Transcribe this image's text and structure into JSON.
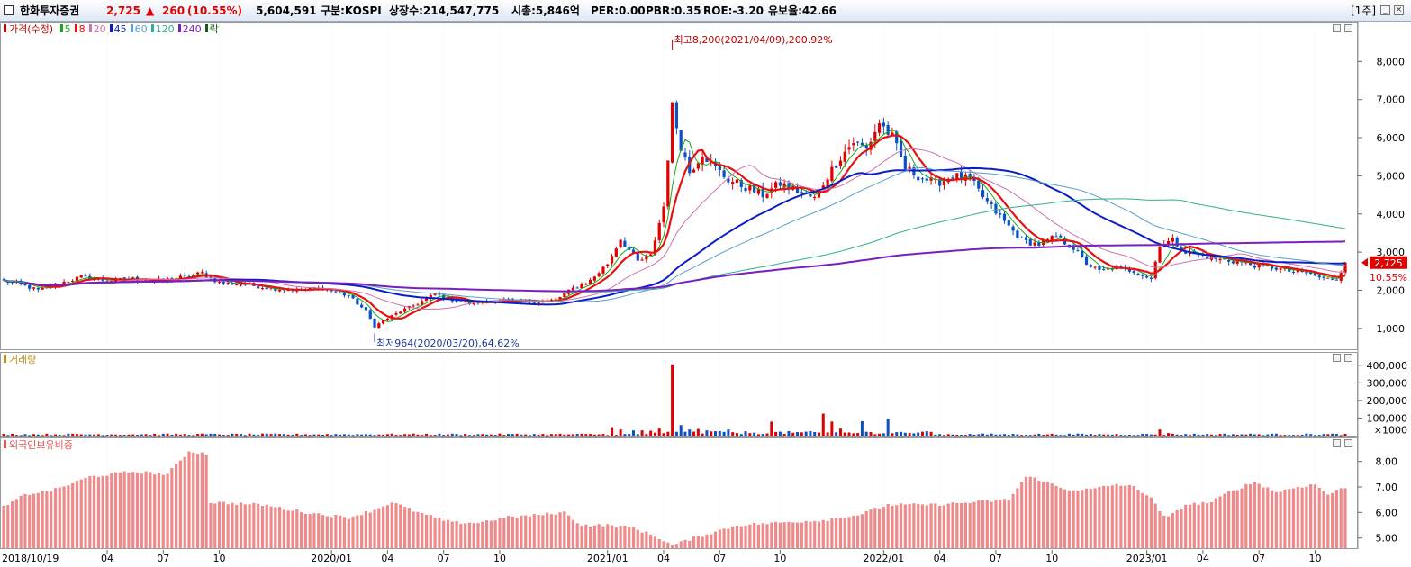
{
  "header": {
    "stock_name": "한화투자증권",
    "price": "2,725",
    "change_arrow": "▲",
    "change": "260",
    "change_pct": "(10.55%)",
    "volume": "5,604,591",
    "market": "구분:KOSPI",
    "shares": "상장수:214,547,775",
    "market_cap": "시총:5,846억",
    "per": "PER:0.00",
    "pbr": "PBR:0.35",
    "roe": "ROE:-3.20",
    "holding": "유보율:42.66",
    "period": "[1주]",
    "colors": {
      "up": "#e00000",
      "down": "#0a50c8",
      "text": "#000000"
    }
  },
  "chart_data": [
    {
      "type": "candlestick",
      "legend": {
        "price": "가격(수정)",
        "ma": [
          {
            "label": "5",
            "color": "#18a818"
          },
          {
            "label": "8",
            "color": "#e81010"
          },
          {
            "label": "20",
            "color": "#d070b0"
          },
          {
            "label": "45",
            "color": "#0a1ec8"
          },
          {
            "label": "60",
            "color": "#5aa0c8"
          },
          {
            "label": "120",
            "color": "#30b090"
          },
          {
            "label": "240",
            "color": "#7a1ec0"
          },
          {
            "label": "락",
            "color": "#106010"
          }
        ]
      },
      "y_ticks": [
        "8,000",
        "7,000",
        "6,000",
        "5,000",
        "4,000",
        "3,000",
        "2,000",
        "1,000"
      ],
      "ylim": [
        500,
        9000
      ],
      "annotations": {
        "high": "최고8,200(2021/04/09),200.92%",
        "low": "최저964(2020/03/20),64.62%"
      },
      "current_price": "2,725",
      "current_pct": "10.55%",
      "x_ticks": [
        "2018/10/19",
        "04",
        "07",
        "10",
        "2020/01",
        "04",
        "07",
        "10",
        "2021/01",
        "04",
        "07",
        "10",
        "2022/01",
        "04",
        "07",
        "10",
        "2023/01",
        "04",
        "07",
        "10"
      ],
      "anchors": [
        {
          "w": 0,
          "p": 2250
        },
        {
          "w": 4,
          "p": 2150
        },
        {
          "w": 8,
          "p": 2000
        },
        {
          "w": 12,
          "p": 2150
        },
        {
          "w": 18,
          "p": 2350
        },
        {
          "w": 24,
          "p": 2250
        },
        {
          "w": 30,
          "p": 2300
        },
        {
          "w": 36,
          "p": 2250
        },
        {
          "w": 42,
          "p": 2350
        },
        {
          "w": 46,
          "p": 2450
        },
        {
          "w": 50,
          "p": 2200
        },
        {
          "w": 56,
          "p": 2150
        },
        {
          "w": 62,
          "p": 2050
        },
        {
          "w": 68,
          "p": 2000
        },
        {
          "w": 74,
          "p": 2050
        },
        {
          "w": 80,
          "p": 1850
        },
        {
          "w": 84,
          "p": 1450
        },
        {
          "w": 86,
          "p": 1050
        },
        {
          "w": 88,
          "p": 1200
        },
        {
          "w": 92,
          "p": 1450
        },
        {
          "w": 96,
          "p": 1650
        },
        {
          "w": 100,
          "p": 1900
        },
        {
          "w": 104,
          "p": 1750
        },
        {
          "w": 108,
          "p": 1650
        },
        {
          "w": 112,
          "p": 1700
        },
        {
          "w": 116,
          "p": 1750
        },
        {
          "w": 120,
          "p": 1700
        },
        {
          "w": 124,
          "p": 1700
        },
        {
          "w": 128,
          "p": 1750
        },
        {
          "w": 132,
          "p": 2050
        },
        {
          "w": 136,
          "p": 2250
        },
        {
          "w": 140,
          "p": 2700
        },
        {
          "w": 143,
          "p": 3350
        },
        {
          "w": 145,
          "p": 3050
        },
        {
          "w": 147,
          "p": 2750
        },
        {
          "w": 150,
          "p": 2900
        },
        {
          "w": 153,
          "p": 4200
        },
        {
          "w": 155,
          "p": 6800
        },
        {
          "w": 157,
          "p": 5800
        },
        {
          "w": 159,
          "p": 5100
        },
        {
          "w": 162,
          "p": 5600
        },
        {
          "w": 165,
          "p": 5200
        },
        {
          "w": 168,
          "p": 4900
        },
        {
          "w": 172,
          "p": 4700
        },
        {
          "w": 176,
          "p": 4500
        },
        {
          "w": 180,
          "p": 4800
        },
        {
          "w": 184,
          "p": 4600
        },
        {
          "w": 188,
          "p": 4400
        },
        {
          "w": 191,
          "p": 5000
        },
        {
          "w": 194,
          "p": 5500
        },
        {
          "w": 197,
          "p": 5900
        },
        {
          "w": 200,
          "p": 5700
        },
        {
          "w": 203,
          "p": 6400
        },
        {
          "w": 206,
          "p": 6000
        },
        {
          "w": 209,
          "p": 5200
        },
        {
          "w": 212,
          "p": 5000
        },
        {
          "w": 216,
          "p": 4800
        },
        {
          "w": 220,
          "p": 5000
        },
        {
          "w": 224,
          "p": 4900
        },
        {
          "w": 228,
          "p": 4300
        },
        {
          "w": 232,
          "p": 3800
        },
        {
          "w": 236,
          "p": 3300
        },
        {
          "w": 240,
          "p": 3200
        },
        {
          "w": 244,
          "p": 3400
        },
        {
          "w": 248,
          "p": 3100
        },
        {
          "w": 251,
          "p": 2700
        },
        {
          "w": 254,
          "p": 2500
        },
        {
          "w": 258,
          "p": 2600
        },
        {
          "w": 262,
          "p": 2500
        },
        {
          "w": 266,
          "p": 2300
        },
        {
          "w": 268,
          "p": 3200
        },
        {
          "w": 271,
          "p": 3300
        },
        {
          "w": 274,
          "p": 3000
        },
        {
          "w": 278,
          "p": 2900
        },
        {
          "w": 282,
          "p": 2800
        },
        {
          "w": 286,
          "p": 2750
        },
        {
          "w": 290,
          "p": 2650
        },
        {
          "w": 294,
          "p": 2600
        },
        {
          "w": 298,
          "p": 2500
        },
        {
          "w": 302,
          "p": 2450
        },
        {
          "w": 306,
          "p": 2300
        },
        {
          "w": 309,
          "p": 2300
        },
        {
          "w": 311,
          "p": 2725
        }
      ]
    },
    {
      "type": "bar",
      "title": "거래량",
      "y_ticks": [
        "400,000",
        "300,000",
        "200,000",
        "100,000"
      ],
      "unit": "×1000",
      "ylim": [
        0,
        450000
      ],
      "spikes": [
        {
          "w": 141,
          "v": 48000
        },
        {
          "w": 143,
          "v": 35000
        },
        {
          "w": 146,
          "v": 30000
        },
        {
          "w": 148,
          "v": 30000
        },
        {
          "w": 150,
          "v": 28000
        },
        {
          "w": 152,
          "v": 40000
        },
        {
          "w": 155,
          "v": 405000
        },
        {
          "w": 157,
          "v": 60000
        },
        {
          "w": 159,
          "v": 35000
        },
        {
          "w": 161,
          "v": 38000
        },
        {
          "w": 163,
          "v": 30000
        },
        {
          "w": 165,
          "v": 25000
        },
        {
          "w": 168,
          "v": 35000
        },
        {
          "w": 178,
          "v": 80000
        },
        {
          "w": 190,
          "v": 125000
        },
        {
          "w": 192,
          "v": 80000
        },
        {
          "w": 194,
          "v": 40000
        },
        {
          "w": 199,
          "v": 82000
        },
        {
          "w": 205,
          "v": 95000
        },
        {
          "w": 207,
          "v": 20000
        },
        {
          "w": 268,
          "v": 35000
        },
        {
          "w": 270,
          "v": 15000
        }
      ]
    },
    {
      "type": "bar",
      "title": "외국인보유비중",
      "y_ticks": [
        "8.00",
        "7.00",
        "6.00",
        "5.00"
      ],
      "ylim": [
        4.6,
        8.8
      ],
      "anchors": [
        {
          "w": 0,
          "v": 6.2
        },
        {
          "w": 5,
          "v": 6.7
        },
        {
          "w": 12,
          "v": 6.9
        },
        {
          "w": 20,
          "v": 7.4
        },
        {
          "w": 30,
          "v": 7.6
        },
        {
          "w": 38,
          "v": 7.5
        },
        {
          "w": 43,
          "v": 8.4
        },
        {
          "w": 47,
          "v": 8.3
        },
        {
          "w": 48,
          "v": 6.4
        },
        {
          "w": 60,
          "v": 6.3
        },
        {
          "w": 70,
          "v": 6.0
        },
        {
          "w": 80,
          "v": 5.8
        },
        {
          "w": 86,
          "v": 6.1
        },
        {
          "w": 90,
          "v": 6.4
        },
        {
          "w": 96,
          "v": 6.0
        },
        {
          "w": 104,
          "v": 5.6
        },
        {
          "w": 110,
          "v": 5.6
        },
        {
          "w": 116,
          "v": 5.8
        },
        {
          "w": 124,
          "v": 5.9
        },
        {
          "w": 130,
          "v": 6.0
        },
        {
          "w": 134,
          "v": 5.5
        },
        {
          "w": 140,
          "v": 5.5
        },
        {
          "w": 146,
          "v": 5.4
        },
        {
          "w": 152,
          "v": 5.0
        },
        {
          "w": 155,
          "v": 4.7
        },
        {
          "w": 160,
          "v": 5.0
        },
        {
          "w": 170,
          "v": 5.5
        },
        {
          "w": 180,
          "v": 5.6
        },
        {
          "w": 190,
          "v": 5.7
        },
        {
          "w": 198,
          "v": 5.9
        },
        {
          "w": 205,
          "v": 6.3
        },
        {
          "w": 215,
          "v": 6.3
        },
        {
          "w": 225,
          "v": 6.4
        },
        {
          "w": 233,
          "v": 6.5
        },
        {
          "w": 237,
          "v": 7.4
        },
        {
          "w": 240,
          "v": 7.3
        },
        {
          "w": 246,
          "v": 6.9
        },
        {
          "w": 252,
          "v": 6.9
        },
        {
          "w": 258,
          "v": 7.1
        },
        {
          "w": 262,
          "v": 7.0
        },
        {
          "w": 266,
          "v": 6.6
        },
        {
          "w": 268,
          "v": 6.0
        },
        {
          "w": 270,
          "v": 5.8
        },
        {
          "w": 274,
          "v": 6.3
        },
        {
          "w": 280,
          "v": 6.4
        },
        {
          "w": 284,
          "v": 6.8
        },
        {
          "w": 290,
          "v": 7.2
        },
        {
          "w": 295,
          "v": 6.8
        },
        {
          "w": 300,
          "v": 7.0
        },
        {
          "w": 304,
          "v": 7.1
        },
        {
          "w": 307,
          "v": 6.7
        },
        {
          "w": 311,
          "v": 7.0
        }
      ]
    }
  ]
}
